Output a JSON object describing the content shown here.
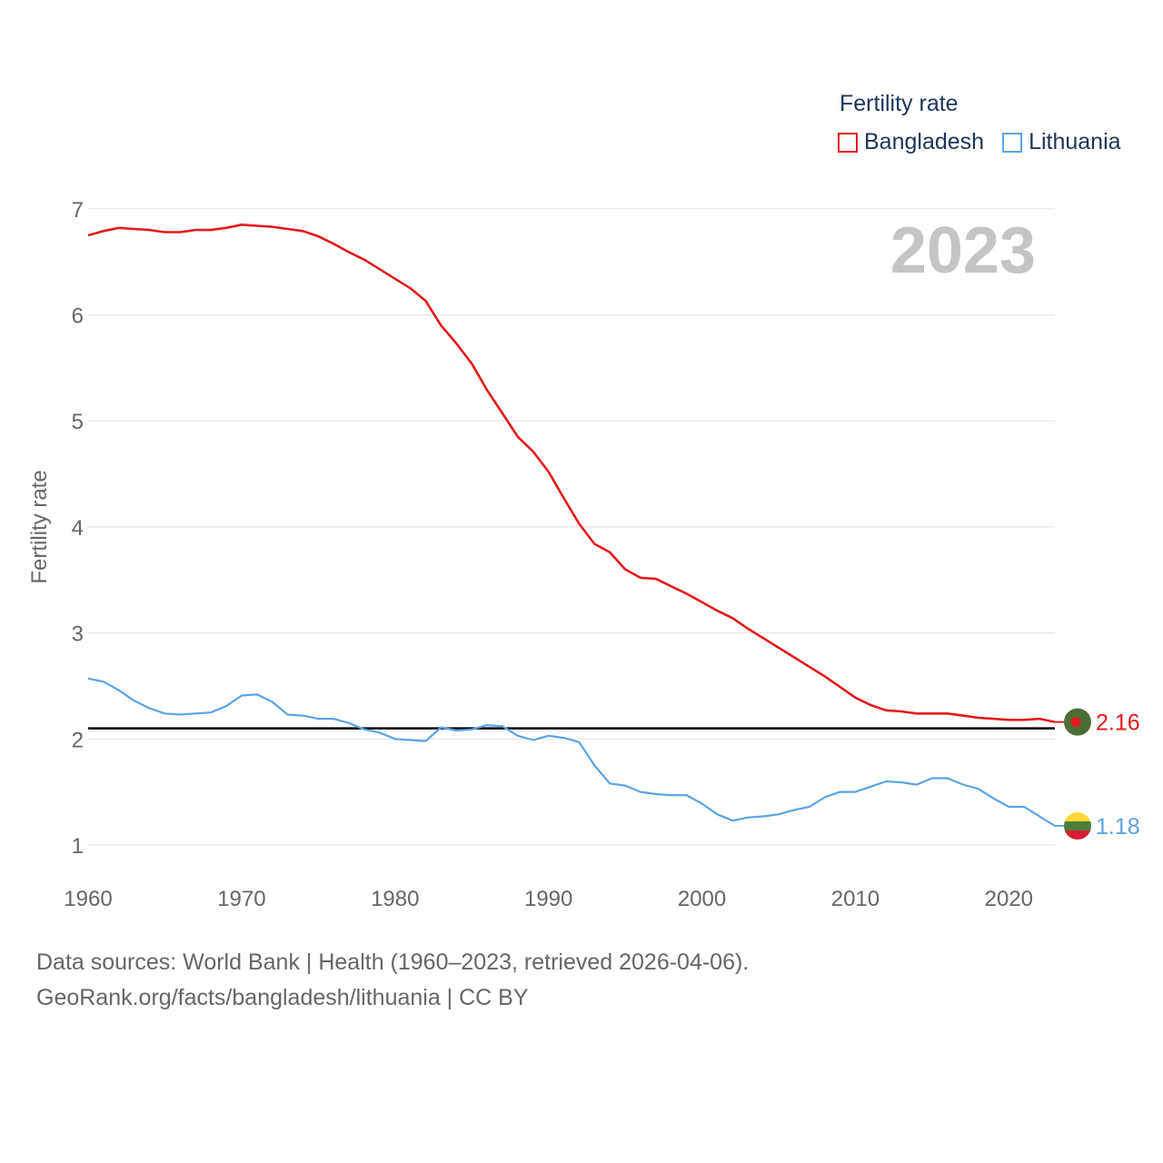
{
  "legend": {
    "title": "Fertility rate",
    "items": [
      {
        "label": "Bangladesh",
        "color": "#e31a1c"
      },
      {
        "label": "Lithuania",
        "color": "#5ba4e6"
      }
    ]
  },
  "footer": {
    "line1": "Data sources: World Bank | Health (1960–2023, retrieved 2026-04-06).",
    "line2": "GeoRank.org/facts/bangladesh/lithuania | CC BY"
  },
  "chart_data": {
    "type": "line",
    "year_watermark": "2023",
    "ylabel": "Fertility rate",
    "xlabel": "",
    "xlim": [
      1960,
      2023
    ],
    "ylim": [
      0.85,
      7.0
    ],
    "yticks": [
      1,
      2,
      3,
      4,
      5,
      6,
      7
    ],
    "xticks": [
      1960,
      1970,
      1980,
      1990,
      2000,
      2010,
      2020
    ],
    "reference_line": {
      "value": 2.1,
      "color": "#000000"
    },
    "x": [
      1960,
      1961,
      1962,
      1963,
      1964,
      1965,
      1966,
      1967,
      1968,
      1969,
      1970,
      1971,
      1972,
      1973,
      1974,
      1975,
      1976,
      1977,
      1978,
      1979,
      1980,
      1981,
      1982,
      1983,
      1984,
      1985,
      1986,
      1987,
      1988,
      1989,
      1990,
      1991,
      1992,
      1993,
      1994,
      1995,
      1996,
      1997,
      1998,
      1999,
      2000,
      2001,
      2002,
      2003,
      2004,
      2005,
      2006,
      2007,
      2008,
      2009,
      2010,
      2011,
      2012,
      2013,
      2014,
      2015,
      2016,
      2017,
      2018,
      2019,
      2020,
      2021,
      2022,
      2023
    ],
    "series": [
      {
        "name": "Bangladesh",
        "color": "#e31a1c",
        "end_label": "2.16",
        "values": [
          6.75,
          6.79,
          6.82,
          6.81,
          6.8,
          6.78,
          6.78,
          6.8,
          6.8,
          6.82,
          6.85,
          6.84,
          6.83,
          6.81,
          6.79,
          6.74,
          6.67,
          6.59,
          6.52,
          6.43,
          6.34,
          6.25,
          6.13,
          5.9,
          5.73,
          5.54,
          5.29,
          5.07,
          4.85,
          4.71,
          4.52,
          4.27,
          4.03,
          3.84,
          3.76,
          3.6,
          3.52,
          3.51,
          3.44,
          3.37,
          3.29,
          3.21,
          3.14,
          3.04,
          2.95,
          2.86,
          2.77,
          2.68,
          2.59,
          2.49,
          2.39,
          2.32,
          2.27,
          2.26,
          2.24,
          2.24,
          2.24,
          2.22,
          2.2,
          2.19,
          2.18,
          2.18,
          2.19,
          2.16
        ]
      },
      {
        "name": "Lithuania",
        "color": "#5ba4e6",
        "end_label": "1.18",
        "values": [
          2.57,
          2.54,
          2.46,
          2.36,
          2.29,
          2.24,
          2.23,
          2.24,
          2.25,
          2.31,
          2.41,
          2.42,
          2.35,
          2.23,
          2.22,
          2.19,
          2.19,
          2.15,
          2.09,
          2.06,
          2.0,
          1.99,
          1.98,
          2.11,
          2.08,
          2.09,
          2.13,
          2.12,
          2.03,
          1.99,
          2.03,
          2.01,
          1.97,
          1.75,
          1.58,
          1.56,
          1.5,
          1.48,
          1.47,
          1.47,
          1.39,
          1.29,
          1.23,
          1.26,
          1.27,
          1.29,
          1.33,
          1.36,
          1.45,
          1.5,
          1.5,
          1.55,
          1.6,
          1.59,
          1.57,
          1.63,
          1.63,
          1.57,
          1.53,
          1.44,
          1.36,
          1.36,
          1.27,
          1.18
        ]
      }
    ]
  }
}
